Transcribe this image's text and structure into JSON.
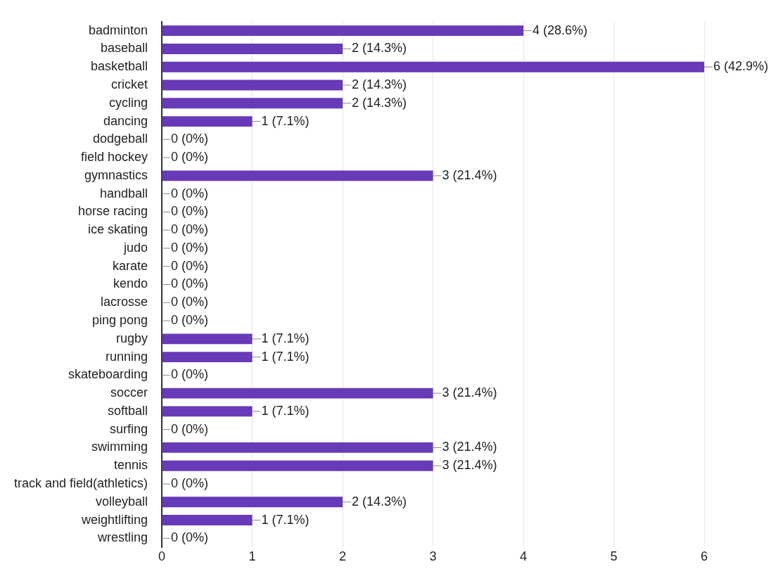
{
  "chart_data": {
    "type": "bar",
    "orientation": "horizontal",
    "categories": [
      "badminton",
      "baseball",
      "basketball",
      "cricket",
      "cycling",
      "dancing",
      "dodgeball",
      "field hockey",
      "gymnastics",
      "handball",
      "horse racing",
      "ice skating",
      "judo",
      "karate",
      "kendo",
      "lacrosse",
      "ping pong",
      "rugby",
      "running",
      "skateboarding",
      "soccer",
      "softball",
      "surfing",
      "swimming",
      "tennis",
      "track and field(athletics)",
      "volleyball",
      "weightlifting",
      "wrestling"
    ],
    "values": [
      4,
      2,
      6,
      2,
      2,
      1,
      0,
      0,
      3,
      0,
      0,
      0,
      0,
      0,
      0,
      0,
      0,
      1,
      1,
      0,
      3,
      1,
      0,
      3,
      3,
      0,
      2,
      1,
      0
    ],
    "value_labels": [
      "4 (28.6%)",
      "2 (14.3%)",
      "6 (42.9%)",
      "2 (14.3%)",
      "2 (14.3%)",
      "1 (7.1%)",
      "0 (0%)",
      "0 (0%)",
      "3 (21.4%)",
      "0 (0%)",
      "0 (0%)",
      "0 (0%)",
      "0 (0%)",
      "0 (0%)",
      "0 (0%)",
      "0 (0%)",
      "0 (0%)",
      "1 (7.1%)",
      "1 (7.1%)",
      "0 (0%)",
      "3 (21.4%)",
      "1 (7.1%)",
      "0 (0%)",
      "3 (21.4%)",
      "3 (21.4%)",
      "0 (0%)",
      "2 (14.3%)",
      "1 (7.1%)",
      "0 (0%)"
    ],
    "color": "#673ab7",
    "xlim": [
      0,
      6
    ],
    "xticks": [
      0,
      1,
      2,
      3,
      4,
      5,
      6
    ],
    "grid": "x",
    "legend": false
  }
}
